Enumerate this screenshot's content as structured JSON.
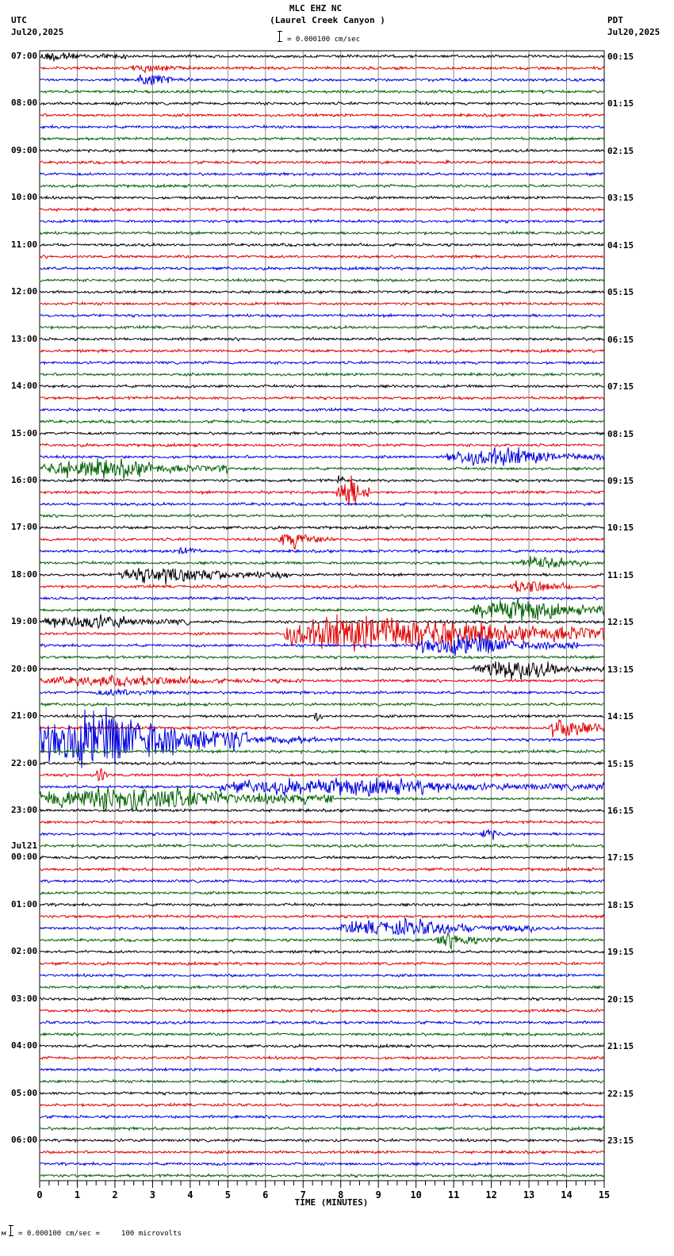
{
  "header": {
    "station": "MLC EHZ NC",
    "location": "(Laurel Creek Canyon )",
    "scale_text": "= 0.000100 cm/sec",
    "left_tz": "UTC",
    "left_date": "Jul20,2025",
    "right_tz": "PDT",
    "right_date": "Jul20,2025"
  },
  "footer": {
    "scale_prefix": "м",
    "scale_text": "= 0.000100 cm/sec =     100 microvolts"
  },
  "chart_data": {
    "type": "line",
    "title": "MLC EHZ NC (Laurel Creek Canyon )",
    "xlabel": "TIME (MINUTES)",
    "ylabel": "",
    "xlim": [
      0,
      15
    ],
    "x_ticks": [
      "0",
      "1",
      "2",
      "3",
      "4",
      "5",
      "6",
      "7",
      "8",
      "9",
      "10",
      "11",
      "12",
      "13",
      "14",
      "15"
    ],
    "grid": true,
    "traces_per_hour": 4,
    "trace_colors": [
      "#000000",
      "#e00000",
      "#0000e0",
      "#006000"
    ],
    "left_labels": [
      {
        "row": 0,
        "text": "07:00"
      },
      {
        "row": 4,
        "text": "08:00"
      },
      {
        "row": 8,
        "text": "09:00"
      },
      {
        "row": 12,
        "text": "10:00"
      },
      {
        "row": 16,
        "text": "11:00"
      },
      {
        "row": 20,
        "text": "12:00"
      },
      {
        "row": 24,
        "text": "13:00"
      },
      {
        "row": 28,
        "text": "14:00"
      },
      {
        "row": 32,
        "text": "15:00"
      },
      {
        "row": 36,
        "text": "16:00"
      },
      {
        "row": 40,
        "text": "17:00"
      },
      {
        "row": 44,
        "text": "18:00"
      },
      {
        "row": 48,
        "text": "19:00"
      },
      {
        "row": 52,
        "text": "20:00"
      },
      {
        "row": 56,
        "text": "21:00"
      },
      {
        "row": 60,
        "text": "22:00"
      },
      {
        "row": 64,
        "text": "23:00"
      },
      {
        "row": 68,
        "text": "00:00",
        "date": "Jul21"
      },
      {
        "row": 72,
        "text": "01:00"
      },
      {
        "row": 76,
        "text": "02:00"
      },
      {
        "row": 80,
        "text": "03:00"
      },
      {
        "row": 84,
        "text": "04:00"
      },
      {
        "row": 88,
        "text": "05:00"
      },
      {
        "row": 92,
        "text": "06:00"
      }
    ],
    "right_labels": [
      {
        "row": 0,
        "text": "00:15"
      },
      {
        "row": 4,
        "text": "01:15"
      },
      {
        "row": 8,
        "text": "02:15"
      },
      {
        "row": 12,
        "text": "03:15"
      },
      {
        "row": 16,
        "text": "04:15"
      },
      {
        "row": 20,
        "text": "05:15"
      },
      {
        "row": 24,
        "text": "06:15"
      },
      {
        "row": 28,
        "text": "07:15"
      },
      {
        "row": 32,
        "text": "08:15"
      },
      {
        "row": 36,
        "text": "09:15"
      },
      {
        "row": 40,
        "text": "10:15"
      },
      {
        "row": 44,
        "text": "11:15"
      },
      {
        "row": 48,
        "text": "12:15"
      },
      {
        "row": 52,
        "text": "13:15"
      },
      {
        "row": 56,
        "text": "14:15"
      },
      {
        "row": 60,
        "text": "15:15"
      },
      {
        "row": 64,
        "text": "16:15"
      },
      {
        "row": 68,
        "text": "17:15"
      },
      {
        "row": 72,
        "text": "18:15"
      },
      {
        "row": 76,
        "text": "19:15"
      },
      {
        "row": 80,
        "text": "20:15"
      },
      {
        "row": 84,
        "text": "21:15"
      },
      {
        "row": 88,
        "text": "22:15"
      },
      {
        "row": 92,
        "text": "23:15"
      }
    ],
    "total_rows": 96,
    "events": [
      {
        "row": 0,
        "start": 0.0,
        "end": 1.5,
        "amp": 6
      },
      {
        "row": 0,
        "start": 1.5,
        "end": 3.0,
        "amp": 3
      },
      {
        "row": 1,
        "start": 2.4,
        "end": 4.5,
        "amp": 4
      },
      {
        "row": 2,
        "start": 2.6,
        "end": 4.0,
        "amp": 7
      },
      {
        "row": 9,
        "start": 10.8,
        "end": 10.9,
        "amp": 6
      },
      {
        "row": 34,
        "start": 10.8,
        "end": 15.0,
        "amp": 9
      },
      {
        "row": 35,
        "start": 0.0,
        "end": 5.0,
        "amp": 9
      },
      {
        "row": 36,
        "start": 7.9,
        "end": 8.2,
        "amp": 5
      },
      {
        "row": 37,
        "start": 7.9,
        "end": 8.8,
        "amp": 16
      },
      {
        "row": 41,
        "start": 6.3,
        "end": 7.8,
        "amp": 8
      },
      {
        "row": 42,
        "start": 3.7,
        "end": 4.3,
        "amp": 6
      },
      {
        "row": 43,
        "start": 12.8,
        "end": 14.6,
        "amp": 7
      },
      {
        "row": 44,
        "start": 2.1,
        "end": 6.6,
        "amp": 8
      },
      {
        "row": 45,
        "start": 12.5,
        "end": 14.2,
        "amp": 7
      },
      {
        "row": 47,
        "start": 11.5,
        "end": 15.0,
        "amp": 11
      },
      {
        "row": 48,
        "start": 0.0,
        "end": 4.0,
        "amp": 7
      },
      {
        "row": 49,
        "start": 6.5,
        "end": 15.0,
        "amp": 18
      },
      {
        "row": 50,
        "start": 10.0,
        "end": 14.3,
        "amp": 10
      },
      {
        "row": 52,
        "start": 11.5,
        "end": 15.0,
        "amp": 9
      },
      {
        "row": 53,
        "start": 0.0,
        "end": 7.0,
        "amp": 5
      },
      {
        "row": 54,
        "start": 1.5,
        "end": 4.0,
        "amp": 4
      },
      {
        "row": 56,
        "start": 7.3,
        "end": 7.5,
        "amp": 7
      },
      {
        "row": 57,
        "start": 13.5,
        "end": 15.0,
        "amp": 11
      },
      {
        "row": 58,
        "start": 0.0,
        "end": 5.5,
        "amp": 28
      },
      {
        "row": 58,
        "start": 5.5,
        "end": 8.5,
        "amp": 4
      },
      {
        "row": 61,
        "start": 1.5,
        "end": 1.8,
        "amp": 12
      },
      {
        "row": 62,
        "start": 4.8,
        "end": 15.0,
        "amp": 8
      },
      {
        "row": 63,
        "start": 0.0,
        "end": 7.8,
        "amp": 12
      },
      {
        "row": 66,
        "start": 11.7,
        "end": 12.4,
        "amp": 6
      },
      {
        "row": 74,
        "start": 8.0,
        "end": 13.2,
        "amp": 8
      },
      {
        "row": 75,
        "start": 10.5,
        "end": 12.3,
        "amp": 7
      }
    ]
  }
}
